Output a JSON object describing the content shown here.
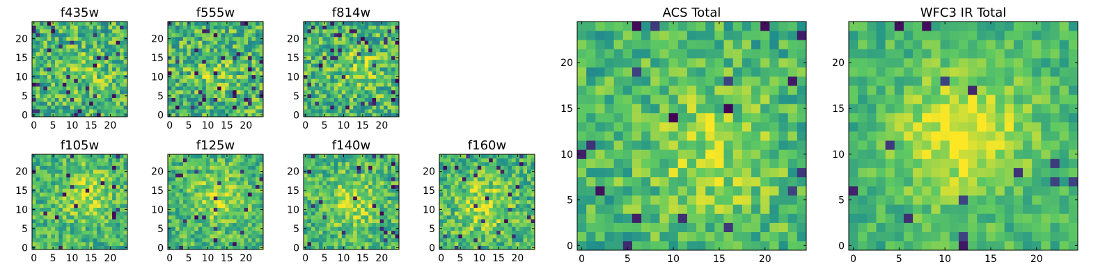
{
  "figure": {
    "background": "#ffffff",
    "colormap": [
      "#440154",
      "#3b528b",
      "#21918c",
      "#5ec962",
      "#fde725"
    ]
  },
  "chart_data": [
    {
      "type": "heatmap",
      "title": "f435w",
      "grid_size": 25,
      "xlim": [
        0,
        24
      ],
      "ylim": [
        0,
        24
      ],
      "xticks": [
        0,
        5,
        10,
        15,
        20
      ],
      "yticks": [
        0,
        5,
        10,
        15,
        20
      ],
      "seed": 11,
      "blob": {
        "x": 14,
        "y": 12,
        "sigma": 4,
        "amp": 0.12
      },
      "noise": 0.5,
      "dark_pixel_rate": 0.05
    },
    {
      "type": "heatmap",
      "title": "f555w",
      "grid_size": 25,
      "xlim": [
        0,
        24
      ],
      "ylim": [
        0,
        24
      ],
      "xticks": [
        0,
        5,
        10,
        15,
        20
      ],
      "yticks": [
        0,
        5,
        10,
        15,
        20
      ],
      "seed": 22,
      "blob": {
        "x": 12,
        "y": 11,
        "sigma": 4,
        "amp": 0.12
      },
      "noise": 0.5,
      "dark_pixel_rate": 0.05
    },
    {
      "type": "heatmap",
      "title": "f814w",
      "grid_size": 25,
      "xlim": [
        0,
        24
      ],
      "ylim": [
        0,
        24
      ],
      "xticks": [
        0,
        5,
        10,
        15,
        20
      ],
      "yticks": [
        0,
        5,
        10,
        15,
        20
      ],
      "seed": 33,
      "blob": {
        "x": 14,
        "y": 12,
        "sigma": 4,
        "amp": 0.15
      },
      "noise": 0.5,
      "dark_pixel_rate": 0.05
    },
    {
      "type": "heatmap",
      "title": "f105w",
      "grid_size": 25,
      "xlim": [
        0,
        24
      ],
      "ylim": [
        0,
        24
      ],
      "xticks": [
        0,
        5,
        10,
        15,
        20
      ],
      "yticks": [
        0,
        5,
        10,
        15,
        20
      ],
      "seed": 44,
      "blob": {
        "x": 14,
        "y": 14,
        "sigma": 5,
        "amp": 0.22
      },
      "noise": 0.4,
      "dark_pixel_rate": 0.03
    },
    {
      "type": "heatmap",
      "title": "f125w",
      "grid_size": 25,
      "xlim": [
        0,
        24
      ],
      "ylim": [
        0,
        24
      ],
      "xticks": [
        0,
        5,
        10,
        15,
        20
      ],
      "yticks": [
        0,
        5,
        10,
        15,
        20
      ],
      "seed": 55,
      "blob": {
        "x": 13,
        "y": 13,
        "sigma": 5,
        "amp": 0.22
      },
      "noise": 0.4,
      "dark_pixel_rate": 0.03
    },
    {
      "type": "heatmap",
      "title": "f140w",
      "grid_size": 25,
      "xlim": [
        0,
        24
      ],
      "ylim": [
        0,
        24
      ],
      "xticks": [
        0,
        5,
        10,
        15,
        20
      ],
      "yticks": [
        0,
        5,
        10,
        15,
        20
      ],
      "seed": 66,
      "blob": {
        "x": 12,
        "y": 12,
        "sigma": 5,
        "amp": 0.22
      },
      "noise": 0.42,
      "dark_pixel_rate": 0.04
    },
    {
      "type": "heatmap",
      "title": "f160w",
      "grid_size": 25,
      "xlim": [
        0,
        24
      ],
      "ylim": [
        0,
        24
      ],
      "xticks": [
        0,
        5,
        10,
        15,
        20
      ],
      "yticks": [
        0,
        5,
        10,
        15,
        20
      ],
      "seed": 77,
      "blob": {
        "x": 11,
        "y": 11,
        "sigma": 5,
        "amp": 0.22
      },
      "noise": 0.42,
      "dark_pixel_rate": 0.05
    },
    {
      "type": "heatmap",
      "title": "ACS Total",
      "grid_size": 25,
      "xlim": [
        0,
        24
      ],
      "ylim": [
        0,
        24
      ],
      "xticks": [
        0,
        5,
        10,
        15,
        20
      ],
      "yticks": [
        0,
        5,
        10,
        15,
        20
      ],
      "seed": 88,
      "blob": {
        "x": 14,
        "y": 10,
        "sigma": 5,
        "amp": 0.2
      },
      "noise": 0.38,
      "dark_pixel_rate": 0.03
    },
    {
      "type": "heatmap",
      "title": "WFC3 IR Total",
      "grid_size": 25,
      "xlim": [
        0,
        24
      ],
      "ylim": [
        0,
        24
      ],
      "xticks": [
        0,
        5,
        10,
        15,
        20
      ],
      "yticks": [
        0,
        5,
        10,
        15,
        20
      ],
      "seed": 99,
      "blob": {
        "x": 12,
        "y": 12,
        "sigma": 5,
        "amp": 0.32
      },
      "noise": 0.28,
      "dark_pixel_rate": 0.02
    }
  ]
}
